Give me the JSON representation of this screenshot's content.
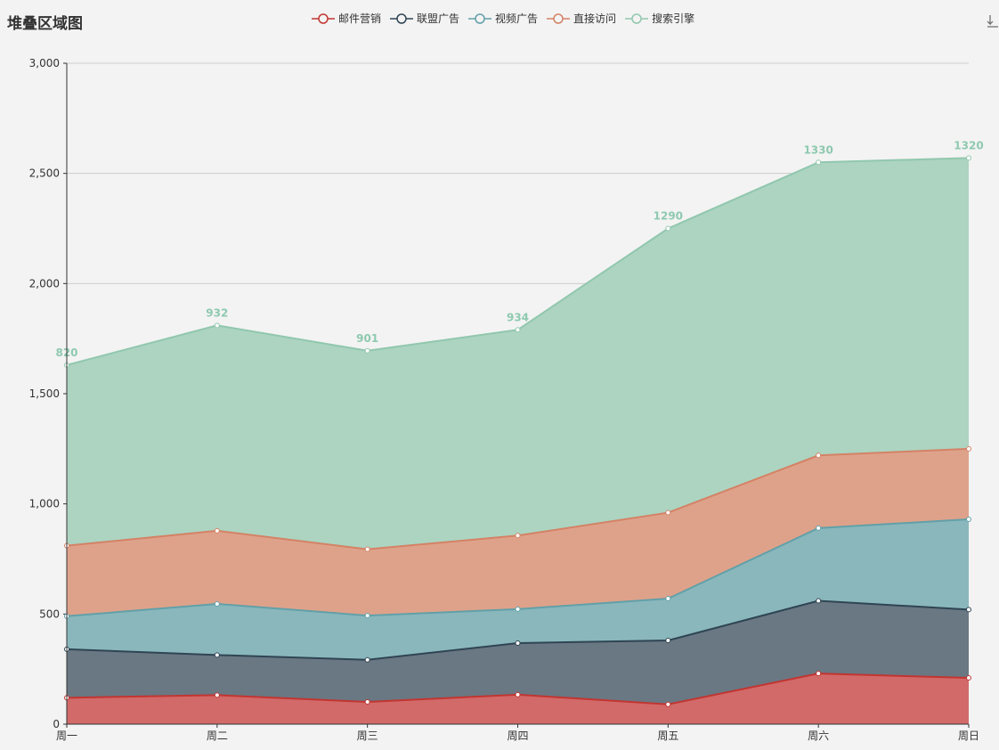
{
  "title": "堆叠区域图",
  "toolbar": {
    "download_icon": "download-icon"
  },
  "chart_data": {
    "type": "area",
    "stacked": true,
    "title": "堆叠区域图",
    "categories": [
      "周一",
      "周二",
      "周三",
      "周四",
      "周五",
      "周六",
      "周日"
    ],
    "ylim": [
      0,
      3000
    ],
    "yticks": [
      0,
      500,
      1000,
      1500,
      2000,
      2500,
      3000
    ],
    "ytick_labels": [
      "0",
      "500",
      "1,000",
      "1,500",
      "2,000",
      "2,500",
      "3,000"
    ],
    "grid": true,
    "legend_position": "top-center",
    "series": [
      {
        "name": "邮件营销",
        "values": [
          120,
          132,
          101,
          134,
          90,
          230,
          210
        ],
        "color": "#c23531",
        "fill": "#d16a69"
      },
      {
        "name": "联盟广告",
        "values": [
          220,
          182,
          191,
          234,
          290,
          330,
          310
        ],
        "color": "#2f4554",
        "fill": "#6a7883"
      },
      {
        "name": "视频广告",
        "values": [
          150,
          232,
          201,
          154,
          190,
          330,
          410
        ],
        "color": "#61a0a8",
        "fill": "#8ab7bc"
      },
      {
        "name": "直接访问",
        "values": [
          320,
          332,
          301,
          334,
          390,
          330,
          320
        ],
        "color": "#d48265",
        "fill": "#dea28b"
      },
      {
        "name": "搜索引擎",
        "values": [
          820,
          932,
          901,
          934,
          1290,
          1330,
          1320
        ],
        "color": "#91c7ae",
        "fill": "#acd4c1",
        "show_labels": true
      }
    ]
  }
}
